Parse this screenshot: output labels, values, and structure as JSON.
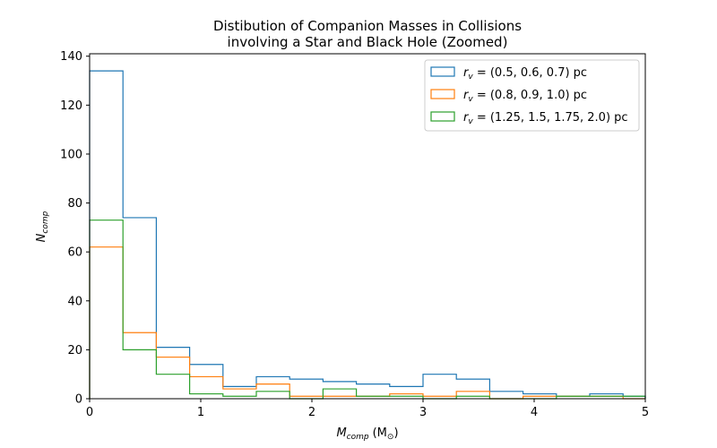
{
  "chart_data": {
    "type": "histogram-step",
    "title_line1": "Distibution of Companion Masses in Collisions",
    "title_line2": "involving a Star and Black Hole (Zoomed)",
    "xlabel_main": "M",
    "xlabel_sub": "comp",
    "xlabel_unit_open": "(M",
    "xlabel_unit_sub": "⊙",
    "xlabel_unit_close": ")",
    "ylabel_main": "N",
    "ylabel_sub": "comp",
    "xlim": [
      0,
      5
    ],
    "ylim": [
      0,
      141
    ],
    "xticks": [
      0,
      1,
      2,
      3,
      4,
      5
    ],
    "xtick_labels": [
      "0",
      "1",
      "2",
      "3",
      "4",
      "5"
    ],
    "yticks": [
      0,
      20,
      40,
      60,
      80,
      100,
      120,
      140
    ],
    "ytick_labels": [
      "0",
      "20",
      "40",
      "60",
      "80",
      "100",
      "120",
      "140"
    ],
    "bin_edges": [
      0,
      0.3,
      0.6,
      0.9,
      1.2,
      1.5,
      1.8,
      2.1,
      2.4,
      2.7,
      3.0,
      3.3,
      3.6,
      3.9,
      4.2,
      4.5,
      4.8,
      5.0
    ],
    "legend_position": "upper right",
    "series": [
      {
        "name": "r_v = (0.5, 0.6, 0.7) pc",
        "legend_r": "r",
        "legend_v": "v",
        "legend_rest": " = (0.5, 0.6, 0.7) pc",
        "color": "#1f77b4",
        "counts": [
          134,
          74,
          21,
          14,
          5,
          9,
          8,
          7,
          6,
          5,
          10,
          8,
          3,
          2,
          1,
          2,
          1
        ]
      },
      {
        "name": "r_v = (0.8, 0.9, 1.0) pc",
        "legend_r": "r",
        "legend_v": "v",
        "legend_rest": " = (0.8, 0.9, 1.0) pc",
        "color": "#ff7f0e",
        "counts": [
          62,
          27,
          17,
          9,
          4,
          6,
          1,
          1,
          1,
          2,
          1,
          3,
          0,
          1,
          1,
          1,
          0
        ]
      },
      {
        "name": "r_v = (1.25, 1.5, 1.75, 2.0) pc",
        "legend_r": "r",
        "legend_v": "v",
        "legend_rest": " = (1.25, 1.5, 1.75, 2.0) pc",
        "color": "#2ca02c",
        "counts": [
          73,
          20,
          10,
          2,
          1,
          3,
          0,
          4,
          1,
          1,
          0,
          1,
          0,
          0,
          1,
          1,
          1
        ]
      }
    ]
  }
}
